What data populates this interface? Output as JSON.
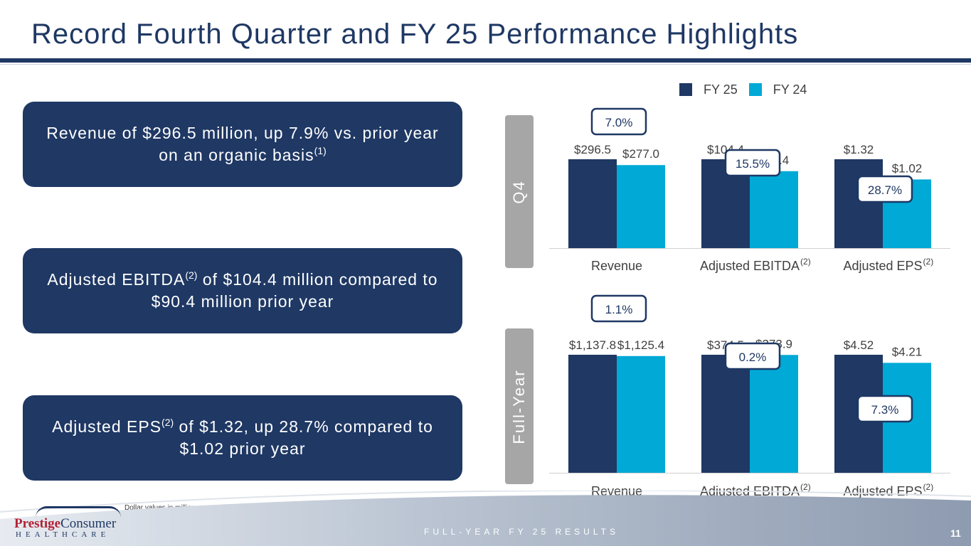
{
  "title": "Record Fourth Quarter and FY 25 Performance Highlights",
  "highlights": [
    {
      "text": "Revenue of $296.5 million, up 7.9% vs. prior year on an organic basis",
      "sup": "(1)"
    },
    {
      "pre": "Adjusted EBITDA",
      "sup": "(2)",
      "post": " of $104.4 million compared to $90.4 million prior year"
    },
    {
      "pre": "Adjusted EPS",
      "sup": "(2)",
      "post": " of $1.32, up 28.7% compared to $1.02 prior year"
    }
  ],
  "legend": [
    "FY 25",
    "FY 24"
  ],
  "colors": {
    "fy25": "#1f3864",
    "fy24": "#00a9d6",
    "tab": "#a6a6a6",
    "navy": "#1f3864"
  },
  "chart_data": [
    {
      "type": "bar",
      "panel_label": "Q4",
      "categories": [
        "Revenue",
        "Adjusted EBITDA",
        "Adjusted EPS"
      ],
      "category_sups": [
        "",
        "(2)",
        "(2)"
      ],
      "series": [
        {
          "name": "FY 25",
          "values": [
            296.5,
            104.4,
            1.32
          ],
          "labels": [
            "$296.5",
            "$104.4",
            "$1.32"
          ]
        },
        {
          "name": "FY 24",
          "values": [
            277.0,
            90.4,
            1.02
          ],
          "labels": [
            "$277.0",
            "$90.4",
            "$1.02"
          ]
        }
      ],
      "growth": [
        "7.0%",
        "15.5%",
        "28.7%"
      ]
    },
    {
      "type": "bar",
      "panel_label": "Full-Year",
      "categories": [
        "Revenue",
        "Adjusted EBITDA",
        "Adjusted EPS"
      ],
      "category_sups": [
        "",
        "(2)",
        "(2)"
      ],
      "series": [
        {
          "name": "FY 25",
          "values": [
            1137.8,
            374.5,
            4.52
          ],
          "labels": [
            "$1,137.8",
            "$374.5",
            "$4.52"
          ]
        },
        {
          "name": "FY 24",
          "values": [
            1125.4,
            373.9,
            4.21
          ],
          "labels": [
            "$1,125.4",
            "$373.9",
            "$4.21"
          ]
        }
      ],
      "growth": [
        "1.1%",
        "0.2%",
        "7.3%"
      ]
    }
  ],
  "footnote": "Dollar values in millions, except per share data.",
  "logo": {
    "word1": "Prestige",
    "word2": "Consumer",
    "line2": "HEALTHCARE"
  },
  "footer": "FULL-YEAR FY 25 RESULTS",
  "page_number": "11"
}
